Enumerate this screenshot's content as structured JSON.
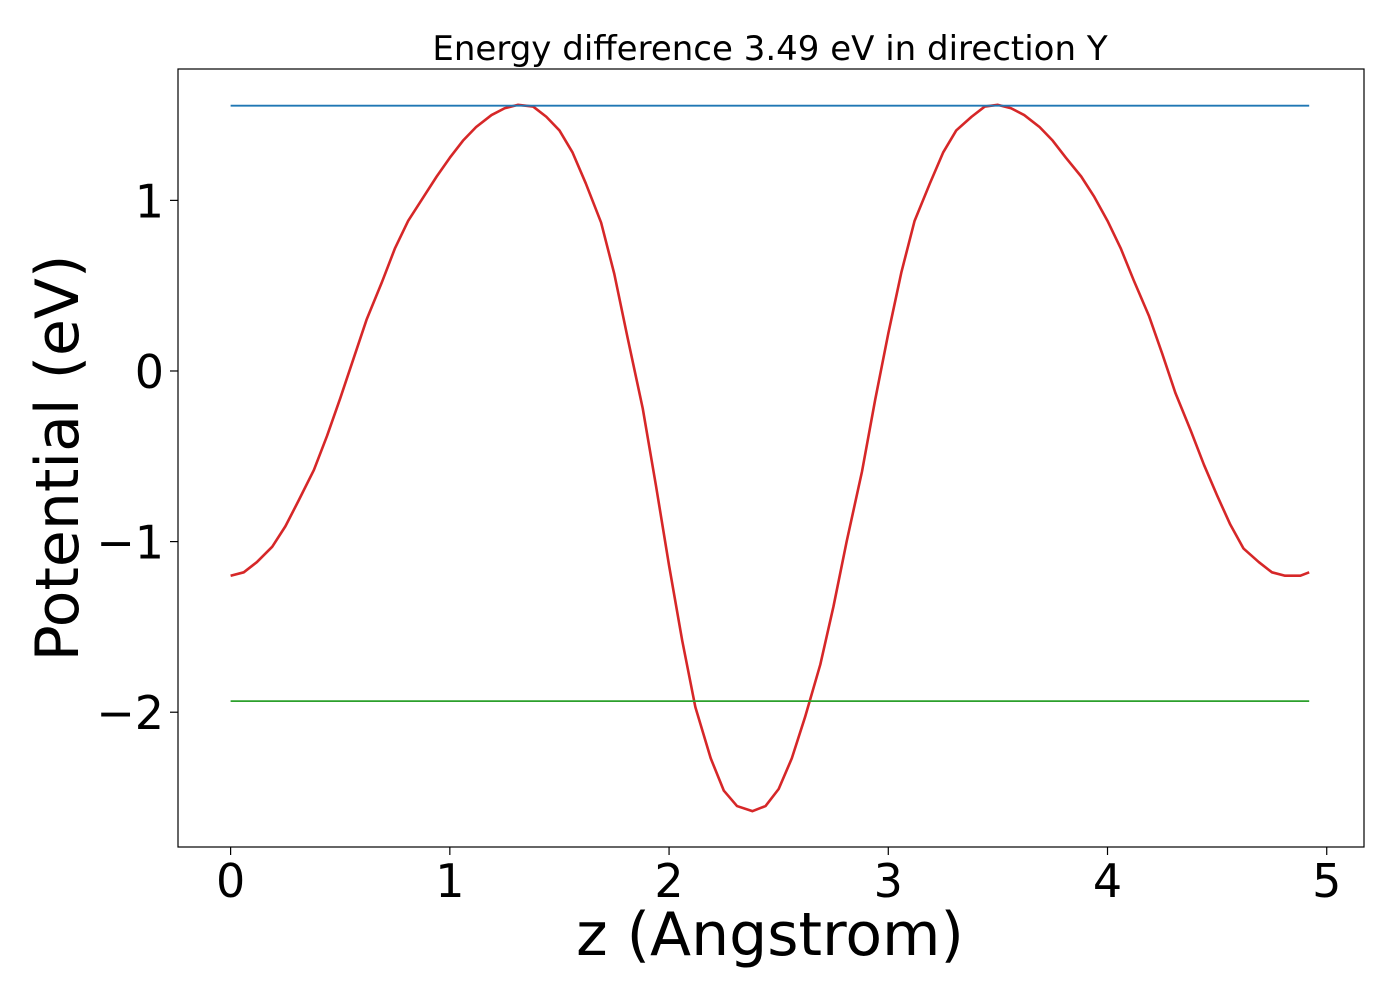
{
  "chart_data": {
    "type": "line",
    "title": "Energy difference 3.49 eV in direction Y",
    "xlabel": "z (Angstrom)",
    "ylabel": "Potential (eV)",
    "xlim": [
      -0.24,
      5.17
    ],
    "ylim": [
      -2.79,
      1.77
    ],
    "grid": false,
    "xticks": [
      0,
      1,
      2,
      3,
      4,
      5
    ],
    "xtick_labels": [
      "0",
      "1",
      "2",
      "3",
      "4",
      "5"
    ],
    "yticks": [
      1,
      0,
      -1,
      -2
    ],
    "ytick_labels": [
      "1",
      "0",
      "−1",
      "−2"
    ],
    "series": [
      {
        "color": "#d62728",
        "x": [
          0.0,
          0.06,
          0.12,
          0.19,
          0.25,
          0.31,
          0.38,
          0.44,
          0.5,
          0.56,
          0.62,
          0.69,
          0.75,
          0.81,
          0.88,
          0.94,
          1.0,
          1.06,
          1.12,
          1.19,
          1.25,
          1.31,
          1.38,
          1.44,
          1.5,
          1.56,
          1.62,
          1.69,
          1.75,
          1.81,
          1.88,
          1.94,
          2.0,
          2.06,
          2.12,
          2.19,
          2.25,
          2.31,
          2.38,
          2.44,
          2.5,
          2.56,
          2.62,
          2.69,
          2.75,
          2.81,
          2.88,
          2.94,
          3.0,
          3.06,
          3.12,
          3.19,
          3.25,
          3.31,
          3.38,
          3.44,
          3.5,
          3.56,
          3.62,
          3.69,
          3.75,
          3.81,
          3.88,
          3.94,
          4.0,
          4.06,
          4.12,
          4.19,
          4.25,
          4.31,
          4.38,
          4.44,
          4.5,
          4.56,
          4.62,
          4.69,
          4.75,
          4.81,
          4.88,
          4.92
        ],
        "y": [
          -1.2,
          -1.18,
          -1.12,
          -1.03,
          -0.91,
          -0.76,
          -0.58,
          -0.38,
          -0.16,
          0.07,
          0.3,
          0.52,
          0.72,
          0.88,
          1.02,
          1.14,
          1.25,
          1.35,
          1.43,
          1.5,
          1.54,
          1.56,
          1.55,
          1.49,
          1.41,
          1.28,
          1.1,
          0.87,
          0.57,
          0.2,
          -0.22,
          -0.67,
          -1.14,
          -1.58,
          -1.97,
          -2.27,
          -2.46,
          -2.55,
          -2.58,
          -2.55,
          -2.45,
          -2.27,
          -2.03,
          -1.72,
          -1.38,
          -1.0,
          -0.59,
          -0.17,
          0.22,
          0.58,
          0.88,
          1.1,
          1.28,
          1.41,
          1.49,
          1.55,
          1.56,
          1.54,
          1.5,
          1.43,
          1.35,
          1.25,
          1.14,
          1.02,
          0.88,
          0.72,
          0.53,
          0.32,
          0.1,
          -0.13,
          -0.35,
          -0.55,
          -0.73,
          -0.9,
          -1.04,
          -1.12,
          -1.18,
          -1.2,
          -1.2,
          -1.18
        ]
      },
      {
        "color": "#1f77b4",
        "x": [
          0.0,
          4.92
        ],
        "y": [
          1.555,
          1.555
        ]
      },
      {
        "color": "#2ca02c",
        "x": [
          0.0,
          4.92
        ],
        "y": [
          -1.935,
          -1.935
        ]
      }
    ]
  }
}
